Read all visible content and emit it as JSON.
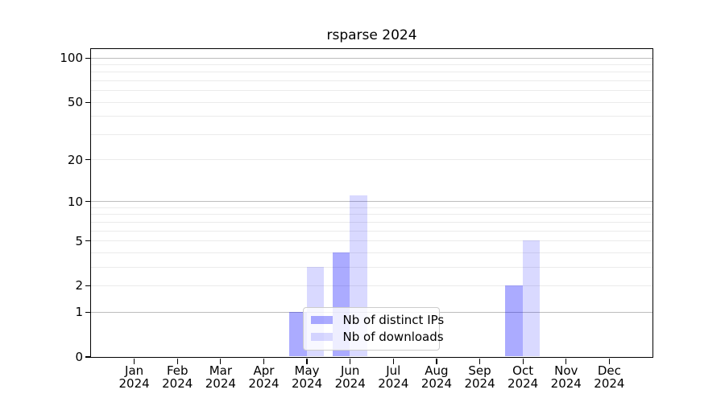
{
  "chart_data": {
    "type": "bar",
    "title": "rsparse 2024",
    "categories": [
      "Jan 2024",
      "Feb 2024",
      "Mar 2024",
      "Apr 2024",
      "May 2024",
      "Jun 2024",
      "Jul 2024",
      "Aug 2024",
      "Sep 2024",
      "Oct 2024",
      "Nov 2024",
      "Dec 2024"
    ],
    "series": [
      {
        "name": "Nb of distinct IPs",
        "color": "rgba(0,0,255,0.33)",
        "values": [
          0,
          0,
          0,
          0,
          1,
          4,
          0,
          0,
          0,
          2,
          0,
          0
        ]
      },
      {
        "name": "Nb of downloads",
        "color": "rgba(0,0,255,0.15)",
        "values": [
          0,
          0,
          0,
          0,
          3,
          11,
          0,
          0,
          0,
          5,
          0,
          0
        ]
      }
    ],
    "yscale": "log1p",
    "ylim": [
      0,
      115
    ],
    "yticks": [
      0,
      1,
      2,
      5,
      10,
      20,
      50,
      100
    ],
    "major_gridlines": [
      1,
      10,
      100
    ],
    "minor_gridlines": [
      2,
      3,
      4,
      5,
      6,
      7,
      8,
      9,
      20,
      30,
      40,
      50,
      60,
      70,
      80,
      90
    ],
    "grid": true,
    "legend_position": "bottom-center",
    "xlabel": "",
    "ylabel": ""
  },
  "colors": {
    "grid_major": "#bdbdbd",
    "grid_minor": "#ebebeb",
    "axis": "#000000",
    "text": "#000000",
    "legend_border": "#cccccc",
    "legend_bg": "rgba(255,255,255,0.8)"
  }
}
